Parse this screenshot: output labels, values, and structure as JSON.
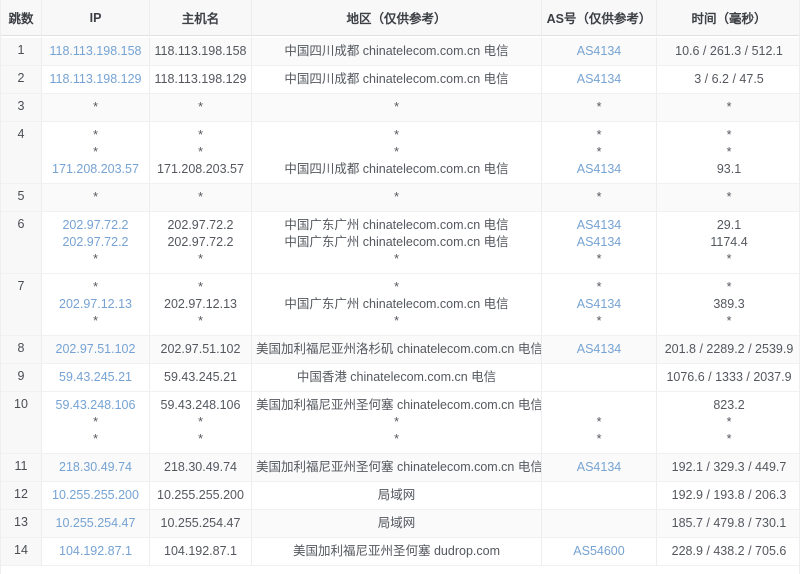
{
  "table": {
    "columns": [
      {
        "key": "hop",
        "label": "跳数"
      },
      {
        "key": "ip",
        "label": "IP"
      },
      {
        "key": "hostname",
        "label": "主机名"
      },
      {
        "key": "region",
        "label": "地区（仅供参考）"
      },
      {
        "key": "asn",
        "label": "AS号（仅供参考）"
      },
      {
        "key": "time",
        "label": "时间（毫秒）"
      }
    ],
    "rows": [
      {
        "hop": "1",
        "shaded": true,
        "cells": {
          "ip": [
            {
              "t": "118.113.198.158",
              "link": true
            }
          ],
          "hostname": [
            {
              "t": "118.113.198.158"
            }
          ],
          "region": [
            {
              "t": "中国四川成都 chinatelecom.com.cn 电信"
            }
          ],
          "asn": [
            {
              "t": "AS4134",
              "link": true
            }
          ],
          "time": [
            {
              "t": "10.6 / 261.3 / 512.1"
            }
          ]
        }
      },
      {
        "hop": "2",
        "shaded": false,
        "cells": {
          "ip": [
            {
              "t": "118.113.198.129",
              "link": true
            }
          ],
          "hostname": [
            {
              "t": "118.113.198.129"
            }
          ],
          "region": [
            {
              "t": "中国四川成都 chinatelecom.com.cn 电信"
            }
          ],
          "asn": [
            {
              "t": "AS4134",
              "link": true
            }
          ],
          "time": [
            {
              "t": "3 / 6.2 / 47.5"
            }
          ]
        }
      },
      {
        "hop": "3",
        "shaded": true,
        "cells": {
          "ip": [
            {
              "t": "*"
            }
          ],
          "hostname": [
            {
              "t": "*"
            }
          ],
          "region": [
            {
              "t": "*"
            }
          ],
          "asn": [
            {
              "t": "*"
            }
          ],
          "time": [
            {
              "t": "*"
            }
          ]
        }
      },
      {
        "hop": "4",
        "shaded": false,
        "cells": {
          "ip": [
            {
              "t": "*"
            },
            {
              "t": "*"
            },
            {
              "t": "171.208.203.57",
              "link": true
            }
          ],
          "hostname": [
            {
              "t": "*"
            },
            {
              "t": "*"
            },
            {
              "t": "171.208.203.57"
            }
          ],
          "region": [
            {
              "t": "*"
            },
            {
              "t": "*"
            },
            {
              "t": "中国四川成都 chinatelecom.com.cn 电信"
            }
          ],
          "asn": [
            {
              "t": "*"
            },
            {
              "t": "*"
            },
            {
              "t": "AS4134",
              "link": true
            }
          ],
          "time": [
            {
              "t": "*"
            },
            {
              "t": "*"
            },
            {
              "t": "93.1"
            }
          ]
        }
      },
      {
        "hop": "5",
        "shaded": true,
        "cells": {
          "ip": [
            {
              "t": "*"
            }
          ],
          "hostname": [
            {
              "t": "*"
            }
          ],
          "region": [
            {
              "t": "*"
            }
          ],
          "asn": [
            {
              "t": "*"
            }
          ],
          "time": [
            {
              "t": "*"
            }
          ]
        }
      },
      {
        "hop": "6",
        "shaded": false,
        "cells": {
          "ip": [
            {
              "t": "202.97.72.2",
              "link": true
            },
            {
              "t": "202.97.72.2",
              "link": true
            },
            {
              "t": "*"
            }
          ],
          "hostname": [
            {
              "t": "202.97.72.2"
            },
            {
              "t": "202.97.72.2"
            },
            {
              "t": "*"
            }
          ],
          "region": [
            {
              "t": "中国广东广州 chinatelecom.com.cn 电信"
            },
            {
              "t": "中国广东广州 chinatelecom.com.cn 电信"
            },
            {
              "t": "*"
            }
          ],
          "asn": [
            {
              "t": "AS4134",
              "link": true
            },
            {
              "t": "AS4134",
              "link": true
            },
            {
              "t": "*"
            }
          ],
          "time": [
            {
              "t": "29.1"
            },
            {
              "t": "1174.4"
            },
            {
              "t": "*"
            }
          ]
        }
      },
      {
        "hop": "7",
        "shaded": false,
        "cells": {
          "ip": [
            {
              "t": "*"
            },
            {
              "t": "202.97.12.13",
              "link": true
            },
            {
              "t": "*"
            }
          ],
          "hostname": [
            {
              "t": "*"
            },
            {
              "t": "202.97.12.13"
            },
            {
              "t": "*"
            }
          ],
          "region": [
            {
              "t": "*"
            },
            {
              "t": "中国广东广州 chinatelecom.com.cn 电信"
            },
            {
              "t": "*"
            }
          ],
          "asn": [
            {
              "t": "*"
            },
            {
              "t": "AS4134",
              "link": true
            },
            {
              "t": "*"
            }
          ],
          "time": [
            {
              "t": "*"
            },
            {
              "t": "389.3"
            },
            {
              "t": "*"
            }
          ]
        }
      },
      {
        "hop": "8",
        "shaded": true,
        "cells": {
          "ip": [
            {
              "t": "202.97.51.102",
              "link": true
            }
          ],
          "hostname": [
            {
              "t": "202.97.51.102"
            }
          ],
          "region": [
            {
              "t": "美国加利福尼亚州洛杉矶 chinatelecom.com.cn 电信"
            }
          ],
          "asn": [
            {
              "t": "AS4134",
              "link": true
            }
          ],
          "time": [
            {
              "t": "201.8 / 2289.2 / 2539.9"
            }
          ]
        }
      },
      {
        "hop": "9",
        "shaded": false,
        "cells": {
          "ip": [
            {
              "t": "59.43.245.21",
              "link": true
            }
          ],
          "hostname": [
            {
              "t": "59.43.245.21"
            }
          ],
          "region": [
            {
              "t": "中国香港 chinatelecom.com.cn 电信"
            }
          ],
          "asn": [
            {
              "t": ""
            }
          ],
          "time": [
            {
              "t": "1076.6 / 1333 / 2037.9"
            }
          ]
        }
      },
      {
        "hop": "10",
        "shaded": false,
        "cells": {
          "ip": [
            {
              "t": "59.43.248.106",
              "link": true
            },
            {
              "t": "*"
            },
            {
              "t": "*"
            }
          ],
          "hostname": [
            {
              "t": "59.43.248.106"
            },
            {
              "t": "*"
            },
            {
              "t": "*"
            }
          ],
          "region": [
            {
              "t": "美国加利福尼亚州圣何塞 chinatelecom.com.cn 电信"
            },
            {
              "t": "*"
            },
            {
              "t": "*"
            }
          ],
          "asn": [
            {
              "t": ""
            },
            {
              "t": "*"
            },
            {
              "t": "*"
            }
          ],
          "time": [
            {
              "t": "823.2"
            },
            {
              "t": "*"
            },
            {
              "t": "*"
            }
          ]
        }
      },
      {
        "hop": "11",
        "shaded": true,
        "cells": {
          "ip": [
            {
              "t": "218.30.49.74",
              "link": true
            }
          ],
          "hostname": [
            {
              "t": "218.30.49.74"
            }
          ],
          "region": [
            {
              "t": "美国加利福尼亚州圣何塞 chinatelecom.com.cn 电信"
            }
          ],
          "asn": [
            {
              "t": "AS4134",
              "link": true
            }
          ],
          "time": [
            {
              "t": "192.1 / 329.3 / 449.7"
            }
          ]
        }
      },
      {
        "hop": "12",
        "shaded": false,
        "cells": {
          "ip": [
            {
              "t": "10.255.255.200",
              "link": true
            }
          ],
          "hostname": [
            {
              "t": "10.255.255.200"
            }
          ],
          "region": [
            {
              "t": "局域网"
            }
          ],
          "asn": [
            {
              "t": ""
            }
          ],
          "time": [
            {
              "t": "192.9 / 193.8 / 206.3"
            }
          ]
        }
      },
      {
        "hop": "13",
        "shaded": true,
        "cells": {
          "ip": [
            {
              "t": "10.255.254.47",
              "link": true
            }
          ],
          "hostname": [
            {
              "t": "10.255.254.47"
            }
          ],
          "region": [
            {
              "t": "局域网"
            }
          ],
          "asn": [
            {
              "t": ""
            }
          ],
          "time": [
            {
              "t": "185.7 / 479.8 / 730.1"
            }
          ]
        }
      },
      {
        "hop": "14",
        "shaded": false,
        "cells": {
          "ip": [
            {
              "t": "104.192.87.1",
              "link": true
            }
          ],
          "hostname": [
            {
              "t": "104.192.87.1"
            }
          ],
          "region": [
            {
              "t": "美国加利福尼亚州圣何塞 dudrop.com"
            }
          ],
          "asn": [
            {
              "t": "AS54600",
              "link": true
            }
          ],
          "time": [
            {
              "t": "228.9 / 438.2 / 705.6"
            }
          ]
        }
      }
    ]
  },
  "colors": {
    "link": "#76a3d3",
    "header_bg": "#f8f8f9",
    "stripe_bg": "#fafafa",
    "border": "#ebedf0",
    "text": "#54585e"
  }
}
